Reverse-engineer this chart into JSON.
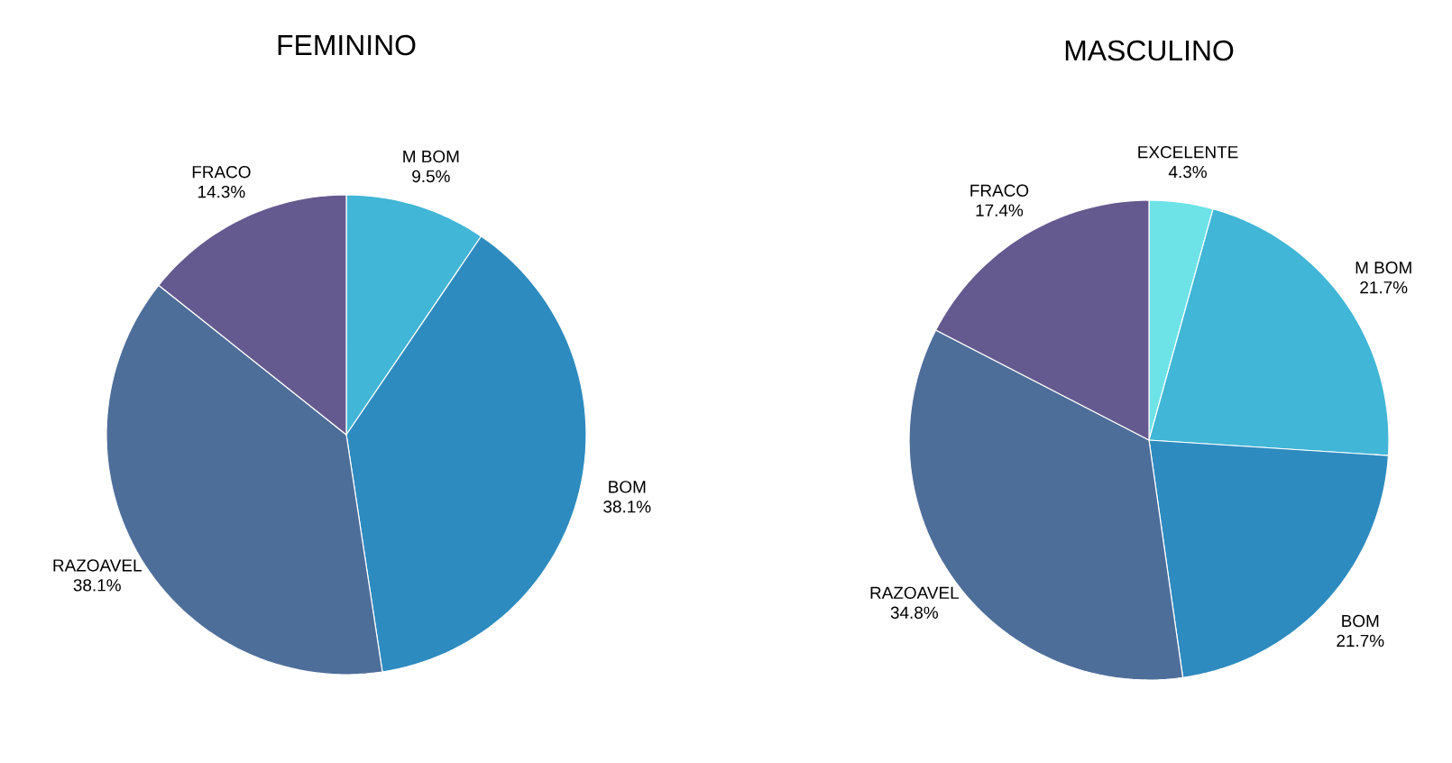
{
  "chart_data": [
    {
      "type": "pie",
      "title": "FEMININO",
      "categories": [
        "M BOM",
        "BOM",
        "RAZOAVEL",
        "FRACO"
      ],
      "values": [
        9.5,
        38.1,
        38.1,
        14.3
      ],
      "value_labels": [
        "9.5%",
        "38.1%",
        "38.1%",
        "14.3%"
      ],
      "colors": [
        "#41b6d6",
        "#2e8bbf",
        "#4e6e9a",
        "#655a8f"
      ]
    },
    {
      "type": "pie",
      "title": "MASCULINO",
      "categories": [
        "EXCELENTE",
        "M BOM",
        "BOM",
        "RAZOAVEL",
        "FRACO"
      ],
      "values": [
        4.3,
        21.7,
        21.7,
        34.8,
        17.4
      ],
      "value_labels": [
        "4.3%",
        "21.7%",
        "21.7%",
        "34.8%",
        "17.4%"
      ],
      "colors": [
        "#6de3e8",
        "#41b6d6",
        "#2e8bbf",
        "#4e6e9a",
        "#655a8f"
      ]
    }
  ]
}
